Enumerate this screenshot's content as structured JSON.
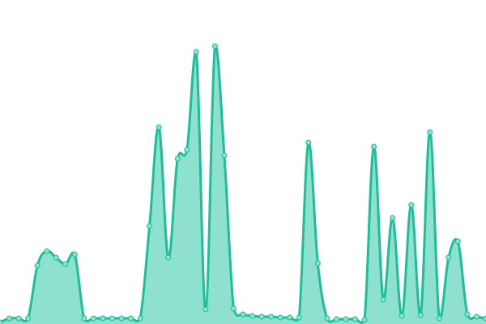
{
  "chart_data": {
    "type": "area",
    "title": "",
    "xlabel": "",
    "ylabel": "",
    "grid": false,
    "axes_visible": false,
    "ylim": [
      0,
      400
    ],
    "x": [
      0,
      1,
      2,
      3,
      4,
      5,
      6,
      7,
      8,
      9,
      10,
      11,
      12,
      13,
      14,
      15,
      16,
      17,
      18,
      19,
      20,
      21,
      22,
      23,
      24,
      25,
      26,
      27,
      28,
      29,
      30,
      31,
      32,
      33,
      34,
      35,
      36,
      37,
      38,
      39,
      40,
      41,
      42,
      43,
      44,
      45,
      46,
      47,
      48,
      49,
      50,
      51,
      52
    ],
    "values": [
      2,
      7,
      7,
      7,
      72,
      90,
      82,
      74,
      86,
      7,
      7,
      7,
      7,
      7,
      7,
      7,
      121,
      243,
      82,
      204,
      215,
      336,
      18,
      343,
      208,
      19,
      12,
      10,
      9,
      9,
      8,
      8,
      8,
      224,
      75,
      7,
      6,
      6,
      6,
      5,
      219,
      30,
      131,
      10,
      147,
      11,
      237,
      7,
      82,
      102,
      12,
      9,
      7
    ],
    "colors": {
      "line": "#1dbf98",
      "fill": "#8ee1cf",
      "point": "#8ee1cf"
    }
  }
}
